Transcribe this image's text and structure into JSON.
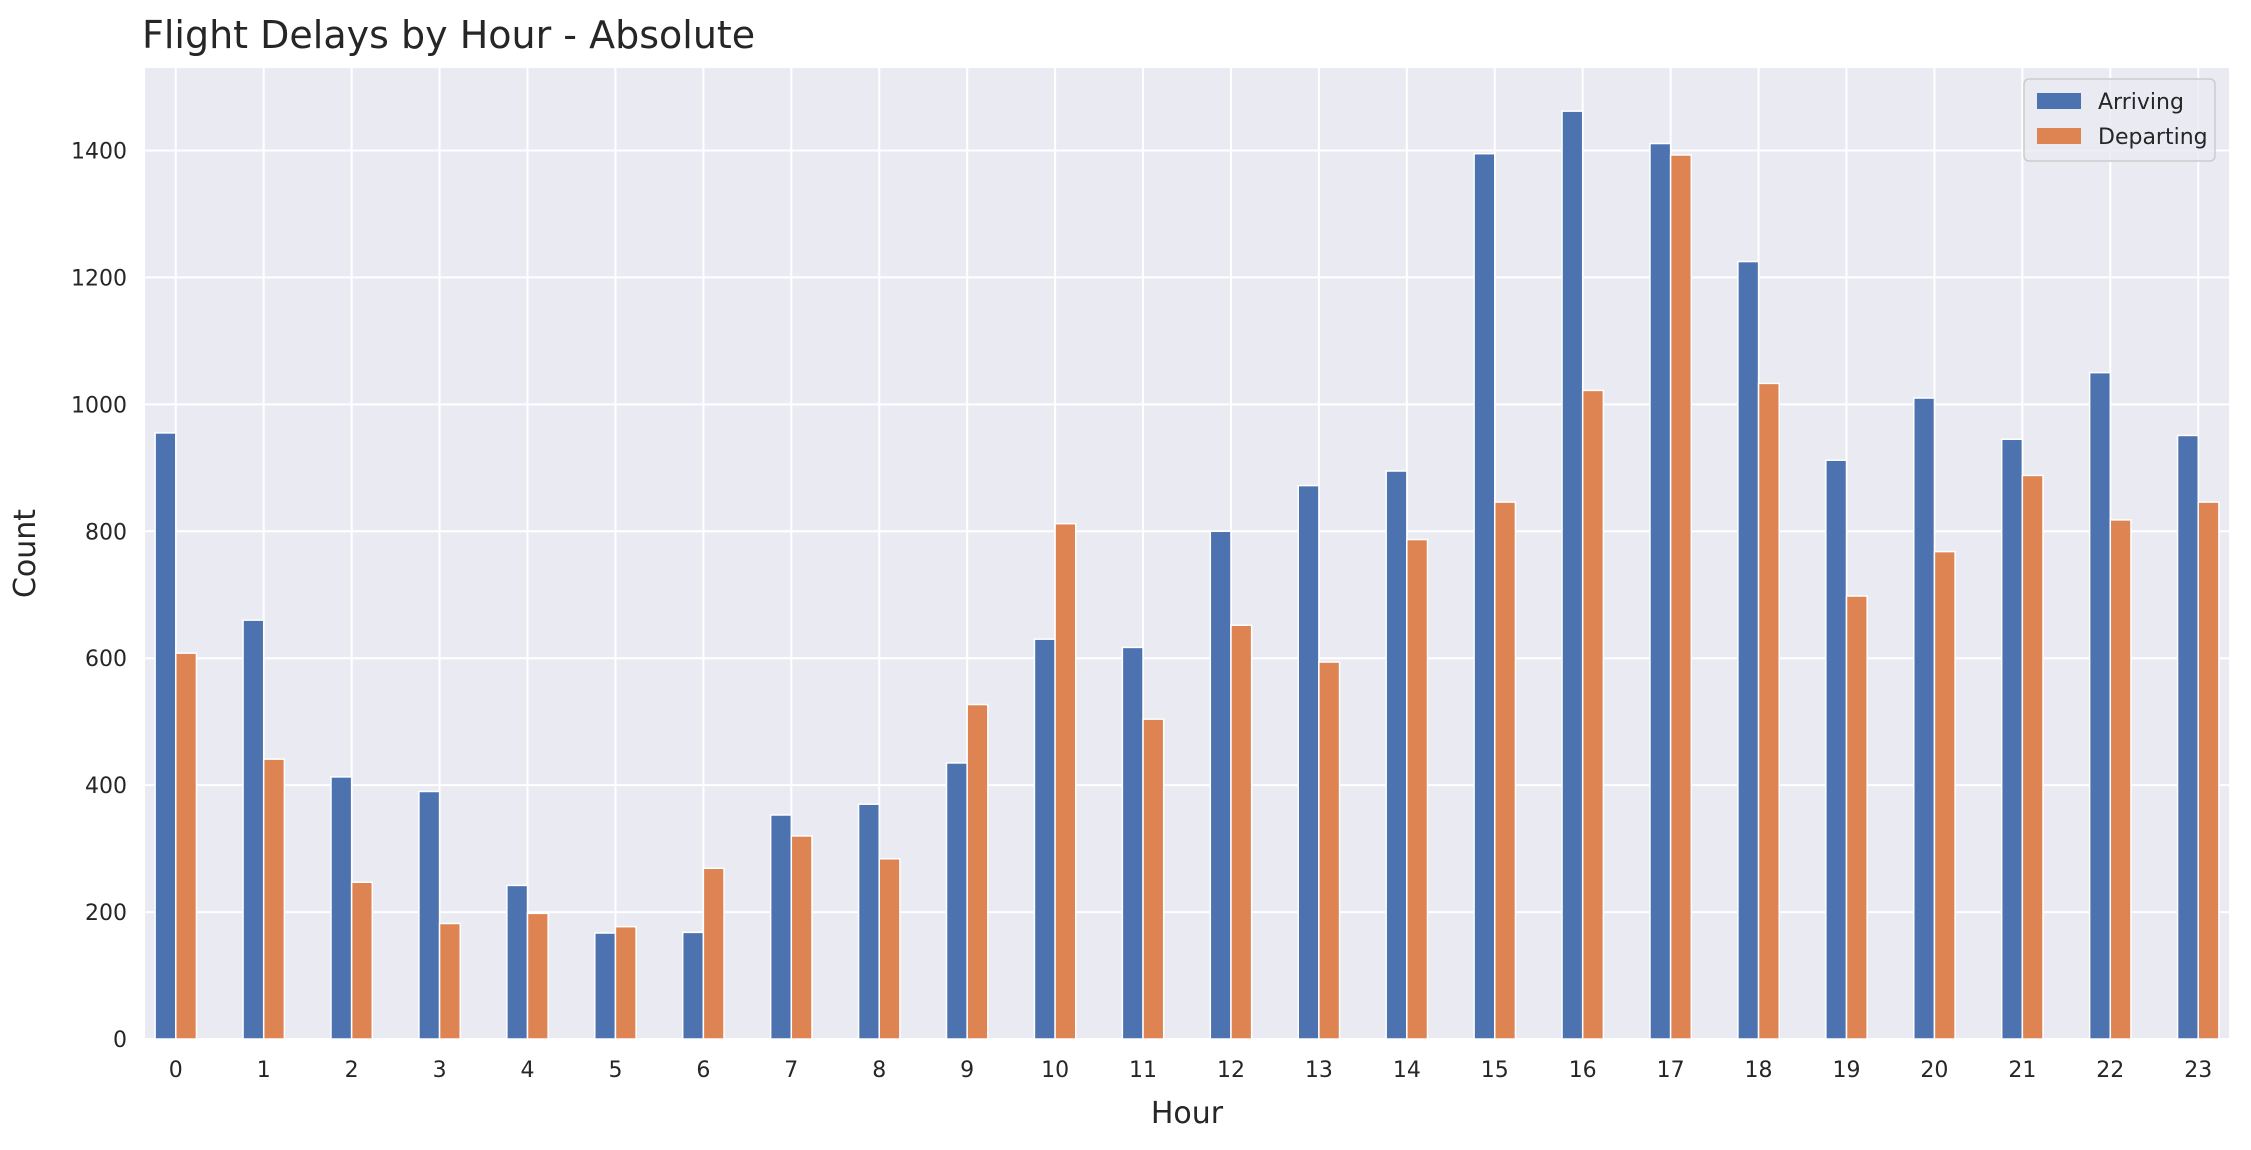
{
  "chart_data": {
    "type": "bar",
    "title": "Flight Delays by Hour - Absolute",
    "xlabel": "Hour",
    "ylabel": "Count",
    "categories": [
      "0",
      "1",
      "2",
      "3",
      "4",
      "5",
      "6",
      "7",
      "8",
      "9",
      "10",
      "11",
      "12",
      "13",
      "14",
      "15",
      "16",
      "17",
      "18",
      "19",
      "20",
      "21",
      "22",
      "23"
    ],
    "series": [
      {
        "name": "Arriving",
        "color": "#4c72b0",
        "values": [
          955,
          660,
          413,
          390,
          242,
          167,
          168,
          353,
          370,
          435,
          630,
          617,
          800,
          872,
          895,
          1395,
          1462,
          1411,
          1225,
          912,
          1010,
          945,
          1050,
          951
        ]
      },
      {
        "name": "Departing",
        "color": "#dd8452",
        "values": [
          608,
          441,
          247,
          182,
          198,
          177,
          269,
          320,
          284,
          527,
          812,
          504,
          652,
          594,
          787,
          846,
          1022,
          1393,
          1033,
          698,
          768,
          888,
          818,
          846
        ]
      }
    ],
    "ylim": [
      0,
      1530
    ],
    "yticks": [
      0,
      200,
      400,
      600,
      800,
      1000,
      1200,
      1400
    ],
    "grid": true,
    "legend_position": "top-right",
    "background_color": "#eaeaf2",
    "grid_color": "#ffffff"
  }
}
